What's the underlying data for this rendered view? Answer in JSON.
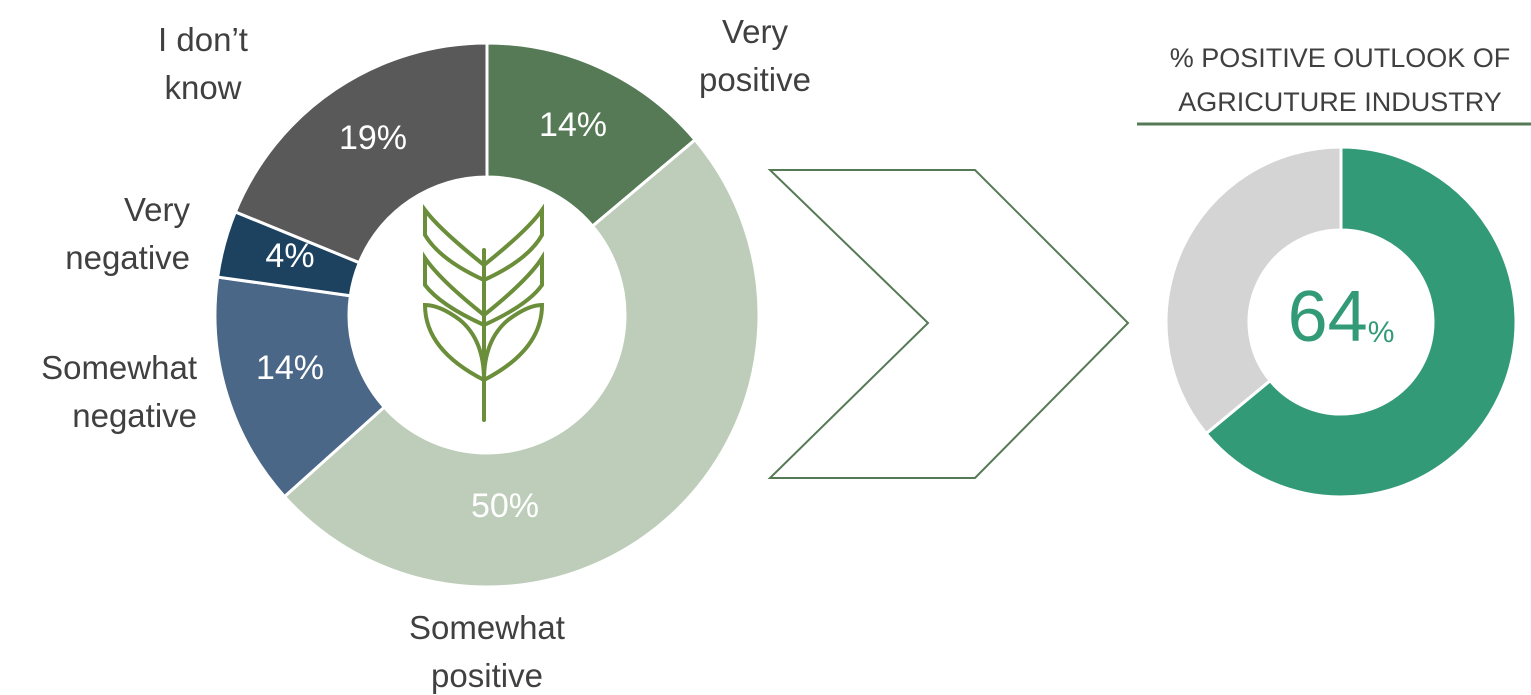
{
  "chart_data": [
    {
      "type": "donut",
      "categories": [
        "Very\npositive",
        "Somewhat\npositive",
        "Somewhat\nnegative",
        "Very\nnegative",
        "I don’t\nknow"
      ],
      "values": [
        14,
        50,
        14,
        4,
        19
      ],
      "value_labels": [
        "14%",
        "50%",
        "14%",
        "4%",
        "19%"
      ],
      "colors": [
        "#557a55",
        "#bdcdb9",
        "#4a6787",
        "#1c4260",
        "#595959"
      ]
    },
    {
      "type": "gauge-donut",
      "title": "% POSITIVE OUTLOOK OF\nAGRICUTURE INDUSTRY",
      "values": [
        64,
        36
      ],
      "value_labels": [
        "64",
        null
      ],
      "unit": "%",
      "colors": [
        "#339a77",
        "#d4d4d4"
      ]
    }
  ]
}
